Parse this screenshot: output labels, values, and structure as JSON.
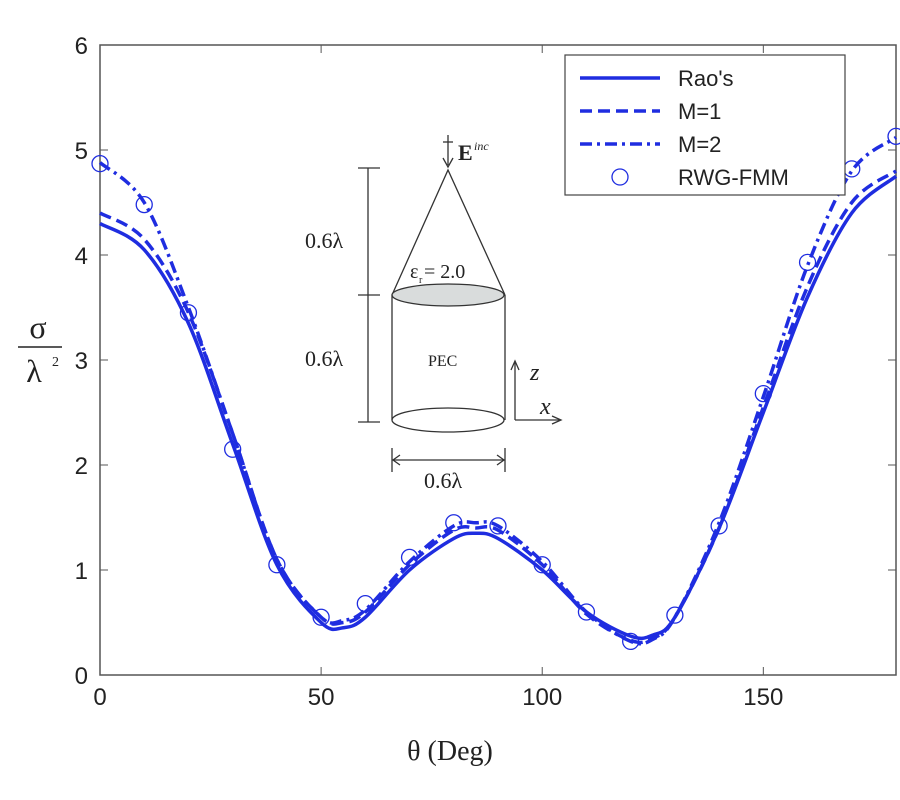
{
  "chart_data": {
    "type": "line",
    "title": "",
    "xlabel": "θ (Deg)",
    "ylabel_num": "σ",
    "ylabel_den": "λ",
    "ylabel_exp": "2",
    "xlim": [
      0,
      180
    ],
    "ylim": [
      0,
      6
    ],
    "xticks": [
      0,
      50,
      100,
      150
    ],
    "yticks": [
      0,
      1,
      2,
      3,
      4,
      5,
      6
    ],
    "grid": false,
    "legend_position": "top-right",
    "color": "#1f2de0",
    "series": [
      {
        "name": "Rao's",
        "style": "solid",
        "x": [
          0,
          10,
          20,
          30,
          40,
          50,
          55,
          60,
          70,
          80,
          85,
          90,
          100,
          110,
          120,
          125,
          130,
          140,
          150,
          160,
          170,
          180
        ],
        "y": [
          4.3,
          4.05,
          3.35,
          2.2,
          1.05,
          0.5,
          0.45,
          0.55,
          1.0,
          1.3,
          1.35,
          1.3,
          1.0,
          0.6,
          0.37,
          0.38,
          0.55,
          1.4,
          2.5,
          3.6,
          4.4,
          4.75
        ]
      },
      {
        "name": "M=1",
        "style": "dashed",
        "x": [
          0,
          10,
          20,
          30,
          40,
          50,
          55,
          60,
          70,
          80,
          85,
          90,
          100,
          110,
          120,
          125,
          130,
          140,
          150,
          160,
          170,
          180
        ],
        "y": [
          4.4,
          4.15,
          3.45,
          2.3,
          1.1,
          0.55,
          0.5,
          0.6,
          1.05,
          1.38,
          1.4,
          1.38,
          1.05,
          0.58,
          0.33,
          0.35,
          0.55,
          1.4,
          2.55,
          3.7,
          4.5,
          4.8
        ]
      },
      {
        "name": "M=2",
        "style": "dashdot",
        "x": [
          0,
          10,
          20,
          30,
          40,
          50,
          55,
          60,
          70,
          80,
          85,
          90,
          100,
          110,
          120,
          125,
          130,
          140,
          150,
          160,
          170,
          180
        ],
        "y": [
          4.88,
          4.5,
          3.5,
          2.3,
          1.1,
          0.55,
          0.52,
          0.62,
          1.08,
          1.42,
          1.45,
          1.42,
          1.08,
          0.6,
          0.32,
          0.34,
          0.55,
          1.45,
          2.65,
          3.9,
          4.8,
          5.12
        ]
      },
      {
        "name": "RWG-FMM",
        "style": "circles",
        "x": [
          0,
          10,
          20,
          30,
          40,
          50,
          60,
          70,
          80,
          90,
          100,
          110,
          120,
          130,
          140,
          150,
          160,
          170,
          180
        ],
        "y": [
          4.87,
          4.48,
          3.45,
          2.15,
          1.05,
          0.55,
          0.68,
          1.12,
          1.45,
          1.42,
          1.05,
          0.6,
          0.32,
          0.57,
          1.42,
          2.68,
          3.93,
          4.82,
          5.13
        ]
      }
    ]
  },
  "inset": {
    "incident_label": "E",
    "incident_sup": "inc",
    "cone_height": "0.6λ",
    "cylinder_height": "0.6λ",
    "diameter": "0.6λ",
    "permittivity": "ε",
    "permittivity_sub": "r",
    "permittivity_value": " = 2.0",
    "material": "PEC",
    "axis_z": "z",
    "axis_x": "x"
  }
}
